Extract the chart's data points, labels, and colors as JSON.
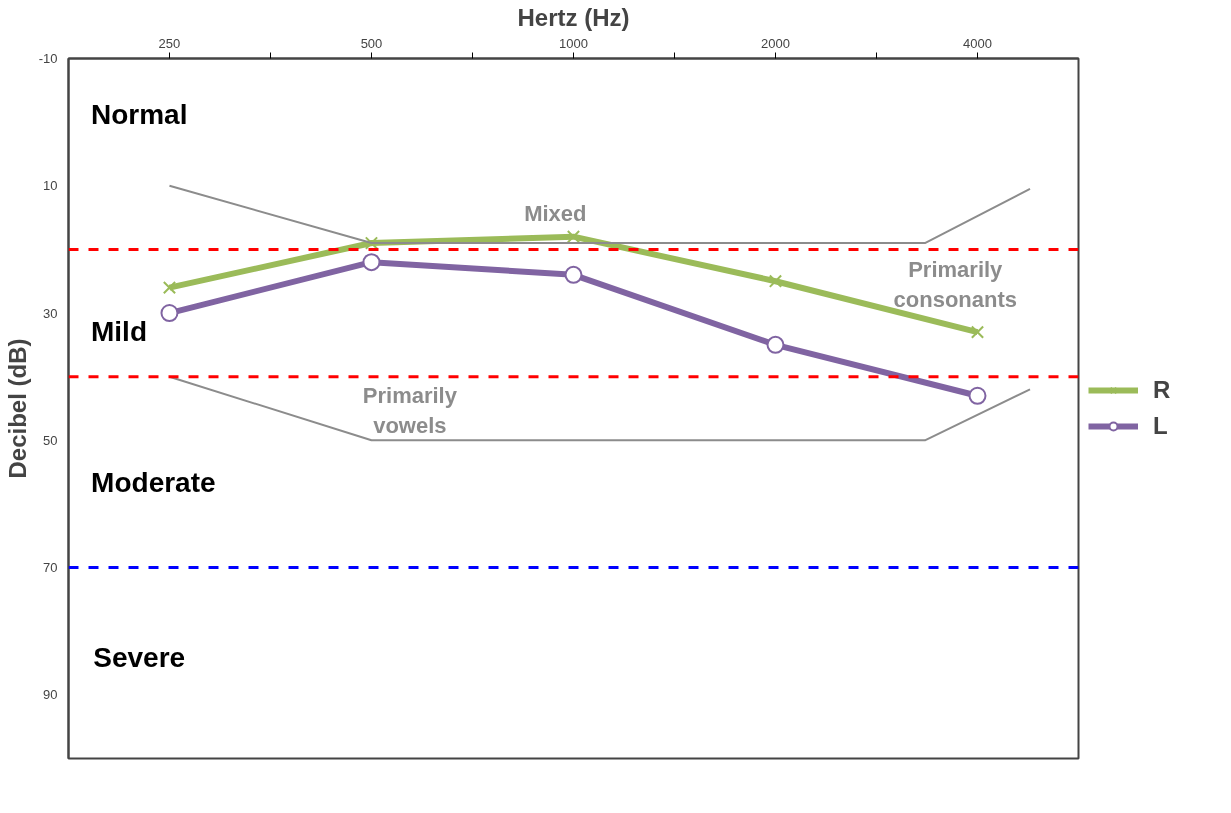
{
  "chart_data": {
    "type": "line",
    "xlabel": "Hertz (Hz)",
    "ylabel": "Decibel (dB)",
    "log": "x",
    "xlim": [
      176.8,
      5657
    ],
    "xticks": [
      250,
      {
        "value": 353.6,
        "label": null
      },
      500,
      {
        "value": 707.1,
        "label": null
      },
      1000,
      {
        "value": 1414,
        "label": null
      },
      2000,
      {
        "value": 2828,
        "label": null
      },
      4000
    ],
    "ylim": [
      100,
      -10
    ],
    "yticks": [
      -10,
      10,
      30,
      50,
      70,
      90
    ],
    "grid": false,
    "legend": "right",
    "series": [
      {
        "name": "R",
        "color": "#9bbb59",
        "marker": "cross",
        "x": [
          250,
          500,
          1000,
          2000,
          4000
        ],
        "values": [
          26,
          19,
          18,
          25,
          33
        ]
      },
      {
        "name": "L",
        "color": "#8064a2",
        "marker": "circle",
        "x": [
          250,
          500,
          1000,
          2000,
          4000
        ],
        "values": [
          30,
          22,
          24,
          35,
          43
        ]
      },
      {
        "color": "#8c8c8c",
        "marker": "none",
        "x": [
          250,
          500,
          3340,
          4790
        ],
        "values": [
          10,
          19,
          19,
          10.5
        ]
      },
      {
        "color": "#8c8c8c",
        "marker": "none",
        "x": [
          250,
          500,
          3340,
          4790
        ],
        "values": [
          40,
          50,
          50,
          42
        ]
      }
    ],
    "ref_lines": [
      {
        "axis": "y",
        "value": 20,
        "color": "#ff0000",
        "line_style": "dashed"
      },
      {
        "axis": "y",
        "value": 40,
        "color": "#ff0000",
        "line_style": "dashed"
      },
      {
        "axis": "y",
        "value": 70,
        "color": "#0000ff",
        "line_style": "dashed"
      }
    ],
    "annotations": [
      "Normal",
      "Mild",
      "Moderate",
      "Severe",
      "Mixed",
      "Primarily\nconsonants",
      "Primarily\nvowels"
    ]
  }
}
